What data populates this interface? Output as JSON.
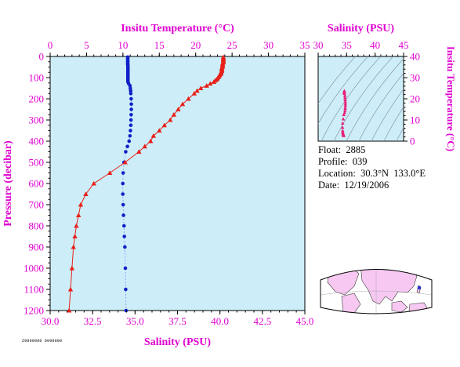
{
  "colors": {
    "axis_text": "#e000d0",
    "plot_bg": "#cdeef8",
    "temperature": "#e8201a",
    "salinity": "#1020c8",
    "ts_points": "#e8207a",
    "land": "#f7c9f2"
  },
  "info": {
    "float_label": "Float:",
    "float_value": "2885",
    "profile_label": "Profile:",
    "profile_value": "039",
    "location_label": "Location:",
    "location_value": "30.3°N  133.0°E",
    "date_label": "Date:",
    "date_value": "12/19/2006"
  },
  "footer_id": "Z0000000 0000000",
  "chart_data": [
    {
      "type": "line",
      "top_axis_label": "Insitu Temperature (°C)",
      "bottom_axis_label": "Salinity (PSU)",
      "ylabel": "Pressure (decibar)",
      "y_reversed": true,
      "ylim": [
        0,
        1200
      ],
      "y_ticks": [
        0,
        100,
        200,
        300,
        400,
        500,
        600,
        700,
        800,
        900,
        1000,
        1100,
        1200
      ],
      "temperature_axis": {
        "range": [
          0,
          35
        ],
        "ticks": [
          0,
          5,
          10,
          15,
          20,
          25,
          30,
          35
        ]
      },
      "salinity_axis": {
        "range": [
          30.0,
          45.0
        ],
        "ticks": [
          "30.0",
          "32.5",
          "35.0",
          "37.5",
          "40.0",
          "42.5",
          "45.0"
        ]
      },
      "series": [
        {
          "name": "Insitu Temperature",
          "axis": "temperature",
          "marker": "triangle",
          "points": [
            [
              23.8,
              3
            ],
            [
              23.8,
              8
            ],
            [
              23.8,
              13
            ],
            [
              23.8,
              18
            ],
            [
              23.8,
              23
            ],
            [
              23.8,
              28
            ],
            [
              23.7,
              33
            ],
            [
              23.7,
              38
            ],
            [
              23.7,
              43
            ],
            [
              23.7,
              48
            ],
            [
              23.6,
              53
            ],
            [
              23.6,
              58
            ],
            [
              23.6,
              63
            ],
            [
              23.6,
              68
            ],
            [
              23.5,
              73
            ],
            [
              23.5,
              78
            ],
            [
              23.4,
              83
            ],
            [
              23.3,
              88
            ],
            [
              23.2,
              93
            ],
            [
              23.1,
              98
            ],
            [
              23.0,
              103
            ],
            [
              22.9,
              108
            ],
            [
              22.7,
              113
            ],
            [
              22.5,
              120
            ],
            [
              22.0,
              128
            ],
            [
              21.5,
              138
            ],
            [
              20.7,
              150
            ],
            [
              20.2,
              162
            ],
            [
              19.8,
              175
            ],
            [
              19.0,
              200
            ],
            [
              18.2,
              225
            ],
            [
              17.6,
              250
            ],
            [
              17.0,
              275
            ],
            [
              16.5,
              300
            ],
            [
              15.7,
              325
            ],
            [
              15.0,
              350
            ],
            [
              14.2,
              375
            ],
            [
              13.8,
              400
            ],
            [
              13.0,
              425
            ],
            [
              12.2,
              450
            ],
            [
              10.3,
              500
            ],
            [
              8.2,
              550
            ],
            [
              6.0,
              600
            ],
            [
              4.9,
              650
            ],
            [
              4.2,
              700
            ],
            [
              3.9,
              750
            ],
            [
              3.6,
              800
            ],
            [
              3.4,
              850
            ],
            [
              3.2,
              900
            ],
            [
              3.0,
              1000
            ],
            [
              2.8,
              1100
            ],
            [
              2.6,
              1200
            ]
          ]
        },
        {
          "name": "Salinity",
          "axis": "salinity",
          "marker": "circle",
          "points": [
            [
              34.57,
              3
            ],
            [
              34.57,
              8
            ],
            [
              34.57,
              13
            ],
            [
              34.57,
              18
            ],
            [
              34.57,
              23
            ],
            [
              34.57,
              28
            ],
            [
              34.57,
              33
            ],
            [
              34.57,
              38
            ],
            [
              34.58,
              43
            ],
            [
              34.58,
              48
            ],
            [
              34.58,
              53
            ],
            [
              34.58,
              58
            ],
            [
              34.58,
              63
            ],
            [
              34.58,
              68
            ],
            [
              34.58,
              73
            ],
            [
              34.58,
              78
            ],
            [
              34.58,
              83
            ],
            [
              34.58,
              88
            ],
            [
              34.58,
              93
            ],
            [
              34.58,
              98
            ],
            [
              34.58,
              103
            ],
            [
              34.58,
              108
            ],
            [
              34.58,
              113
            ],
            [
              34.58,
              120
            ],
            [
              34.62,
              128
            ],
            [
              34.7,
              138
            ],
            [
              34.72,
              150
            ],
            [
              34.74,
              162
            ],
            [
              34.75,
              175
            ],
            [
              34.77,
              200
            ],
            [
              34.78,
              225
            ],
            [
              34.78,
              250
            ],
            [
              34.77,
              275
            ],
            [
              34.76,
              300
            ],
            [
              34.75,
              325
            ],
            [
              34.73,
              350
            ],
            [
              34.7,
              375
            ],
            [
              34.65,
              400
            ],
            [
              34.55,
              425
            ],
            [
              34.45,
              450
            ],
            [
              34.35,
              500
            ],
            [
              34.3,
              550
            ],
            [
              34.28,
              600
            ],
            [
              34.28,
              650
            ],
            [
              34.3,
              700
            ],
            [
              34.32,
              750
            ],
            [
              34.35,
              800
            ],
            [
              34.37,
              850
            ],
            [
              34.4,
              900
            ],
            [
              34.43,
              1000
            ],
            [
              34.45,
              1100
            ],
            [
              34.47,
              1200
            ]
          ]
        }
      ]
    },
    {
      "type": "scatter",
      "top_axis_label": "Salinity (PSU)",
      "ylabel": "Insitu Temperature (°C)",
      "xlim": [
        30,
        45
      ],
      "x_ticks": [
        30,
        35,
        40,
        45
      ],
      "ylim": [
        0,
        40
      ],
      "y_ticks": [
        0,
        10,
        20,
        30,
        40
      ],
      "series": [
        {
          "name": "T-S",
          "points": [
            [
              34.6,
              23.8
            ],
            [
              34.6,
              23.5
            ],
            [
              34.6,
              23.0
            ],
            [
              34.6,
              22.5
            ],
            [
              34.7,
              21.5
            ],
            [
              34.7,
              20.5
            ],
            [
              34.75,
              19.5
            ],
            [
              34.78,
              18.5
            ],
            [
              34.78,
              17.5
            ],
            [
              34.77,
              16.5
            ],
            [
              34.75,
              15.5
            ],
            [
              34.72,
              14.5
            ],
            [
              34.65,
              13.5
            ],
            [
              34.5,
              12.5
            ],
            [
              34.4,
              10.5
            ],
            [
              34.3,
              8.5
            ],
            [
              34.28,
              6.5
            ],
            [
              34.3,
              5.0
            ],
            [
              34.33,
              4.2
            ],
            [
              34.37,
              3.6
            ],
            [
              34.42,
              3.2
            ],
            [
              34.45,
              2.8
            ],
            [
              34.47,
              2.6
            ]
          ]
        }
      ]
    }
  ]
}
